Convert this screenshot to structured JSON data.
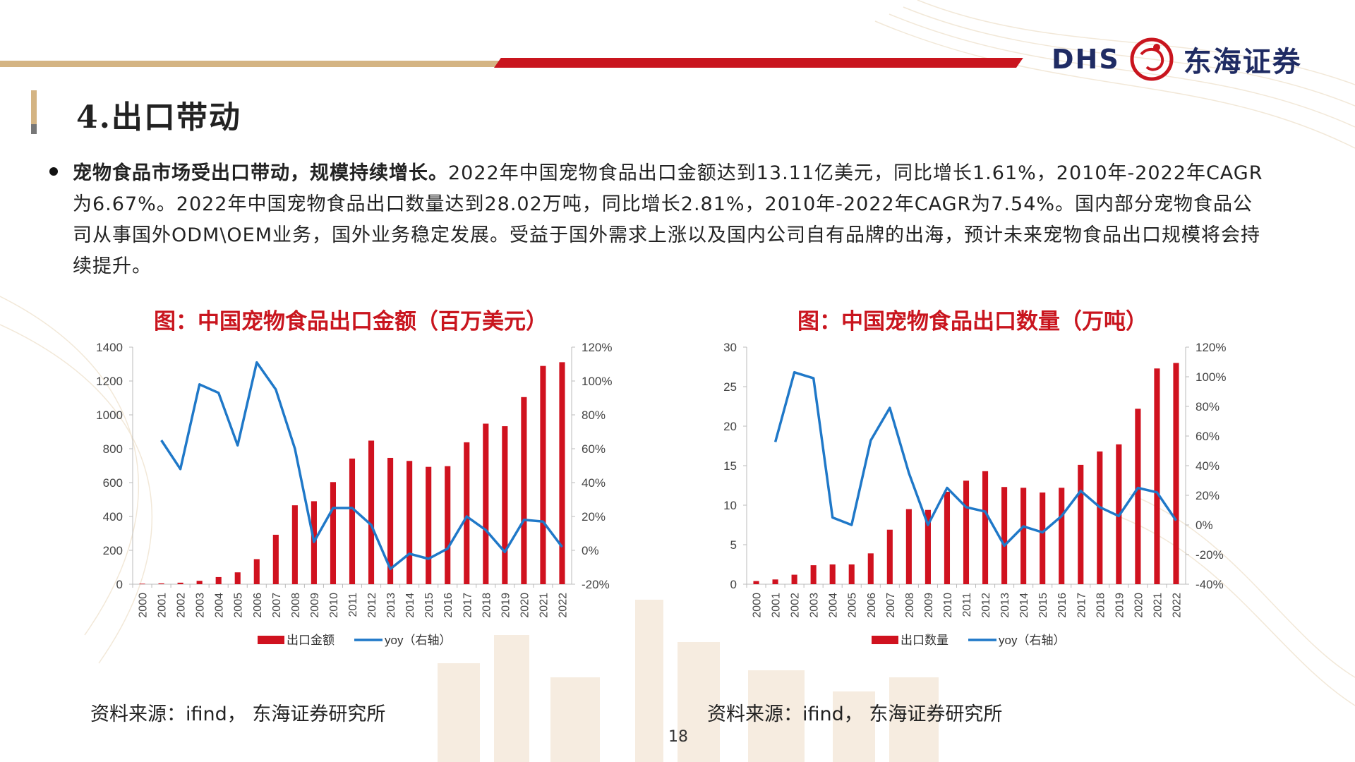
{
  "brand": {
    "latin": "DHS",
    "cn": "东海证券"
  },
  "page": {
    "title": "4.出口带动",
    "number": "18"
  },
  "paragraph": {
    "lead": "宠物食品市场受出口带动，规模持续增长。",
    "body": "2022年中国宠物食品出口金额达到13.11亿美元，同比增长1.61%，2010年-2022年CAGR为6.67%。2022年中国宠物食品出口数量达到28.02万吨，同比增长2.81%，2010年-2022年CAGR为7.54%。国内部分宠物食品公司从事国外ODM\\OEM业务，国外业务稳定发展。受益于国外需求上涨以及国内公司自有品牌的出海，预计未来宠物食品出口规模将会持续提升。"
  },
  "colors": {
    "bar": "#d0121f",
    "line": "#1f78c8",
    "title": "#c9151e"
  },
  "chart_data": [
    {
      "type": "bar",
      "title": "图：中国宠物食品出口金额（百万美元）",
      "categories": [
        "2000",
        "2001",
        "2002",
        "2003",
        "2004",
        "2005",
        "2006",
        "2007",
        "2008",
        "2009",
        "2010",
        "2011",
        "2012",
        "2013",
        "2014",
        "2015",
        "2016",
        "2017",
        "2018",
        "2019",
        "2020",
        "2021",
        "2022"
      ],
      "series": [
        {
          "name": "出口金额",
          "type": "bar",
          "axis": "left",
          "values": [
            3,
            5,
            9,
            20,
            42,
            70,
            148,
            292,
            466,
            490,
            603,
            742,
            848,
            746,
            728,
            693,
            697,
            838,
            948,
            933,
            1105,
            1289,
            1311
          ]
        },
        {
          "name": "yoy（右轴）",
          "type": "line",
          "axis": "right",
          "values": [
            null,
            65,
            48,
            98,
            93,
            62,
            111,
            95,
            60,
            5,
            25,
            25,
            15,
            -11,
            -2,
            -5,
            1,
            20,
            12,
            -1,
            18,
            17,
            2
          ]
        }
      ],
      "ylim_left": [
        0,
        1400
      ],
      "yticks_left": [
        "0",
        "200",
        "400",
        "600",
        "800",
        "1000",
        "1200",
        "1400"
      ],
      "ylim_right": [
        -20,
        120
      ],
      "yticks_right": [
        "-20%",
        "0%",
        "20%",
        "40%",
        "60%",
        "80%",
        "100%",
        "120%"
      ],
      "legend": "bottom-center",
      "source": "资料来源：ifind， 东海证券研究所"
    },
    {
      "type": "bar",
      "title": "图：中国宠物食品出口数量（万吨）",
      "categories": [
        "2000",
        "2001",
        "2002",
        "2003",
        "2004",
        "2005",
        "2006",
        "2007",
        "2008",
        "2009",
        "2010",
        "2011",
        "2012",
        "2013",
        "2014",
        "2015",
        "2016",
        "2017",
        "2018",
        "2019",
        "2020",
        "2021",
        "2022"
      ],
      "series": [
        {
          "name": "出口数量",
          "type": "bar",
          "axis": "left",
          "values": [
            0.4,
            0.6,
            1.2,
            2.4,
            2.5,
            2.5,
            3.9,
            6.9,
            9.5,
            9.4,
            11.7,
            13.1,
            14.3,
            12.3,
            12.2,
            11.6,
            12.2,
            15.1,
            16.8,
            17.7,
            22.2,
            27.3,
            28.0
          ]
        },
        {
          "name": "yoy（右轴）",
          "type": "line",
          "axis": "right",
          "values": [
            null,
            56,
            103,
            99,
            5,
            0,
            57,
            79,
            35,
            0,
            25,
            12,
            9,
            -14,
            -1,
            -5,
            6,
            23,
            12,
            6,
            25,
            22,
            3
          ]
        }
      ],
      "ylim_left": [
        0,
        30
      ],
      "yticks_left": [
        "0",
        "5",
        "10",
        "15",
        "20",
        "25",
        "30"
      ],
      "ylim_right": [
        -40,
        120
      ],
      "yticks_right": [
        "-40%",
        "-20%",
        "0%",
        "20%",
        "40%",
        "60%",
        "80%",
        "100%",
        "120%"
      ],
      "legend": "bottom-center",
      "source": "资料来源：ifind， 东海证券研究所"
    }
  ]
}
